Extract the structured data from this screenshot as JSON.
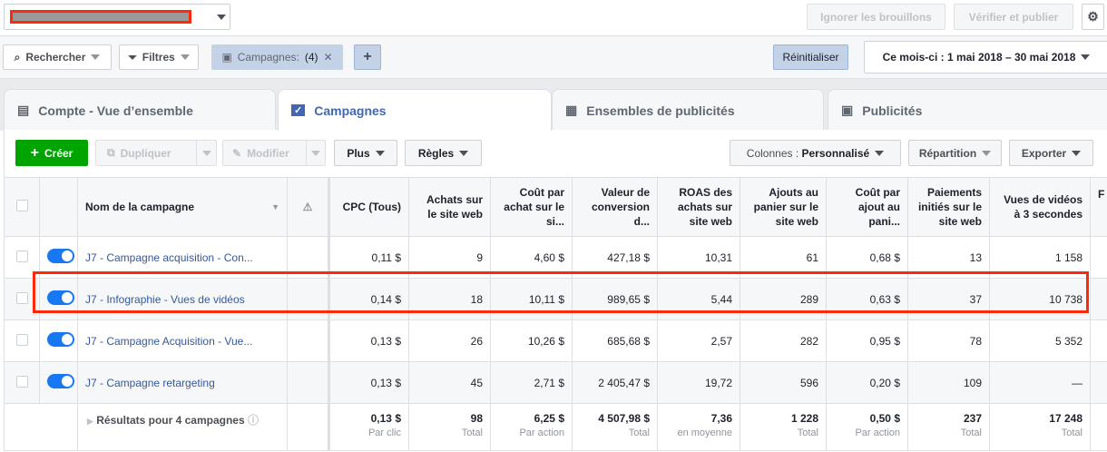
{
  "topbar": {
    "account_redacted": true,
    "discard_label": "Ignorer les brouillons",
    "review_label": "Vérifier et publier",
    "settings_icon": "gear-icon"
  },
  "filterbar": {
    "search_label": "Rechercher",
    "filters_label": "Filtres",
    "chip_label": "Campagnes:",
    "chip_count": "(4)",
    "reset_label": "Réinitialiser",
    "date_label": "Ce mois-ci : 1 mai 2018 – 30 mai 2018"
  },
  "tabs": [
    {
      "label": "Compte - Vue d’ensemble",
      "icon": "account-overview-icon"
    },
    {
      "label": "Campagnes",
      "icon": "campaign-folder-check-icon",
      "active": true
    },
    {
      "label": "Ensembles de publicités",
      "icon": "grid-icon"
    },
    {
      "label": "Publicités",
      "icon": "ad-icon"
    }
  ],
  "toolbar": {
    "create": "Créer",
    "duplicate": "Dupliquer",
    "edit": "Modifier",
    "more": "Plus",
    "rules": "Règles",
    "columns_prefix": "Colonnes : ",
    "columns_value": "Personnalisé",
    "breakdown": "Répartition",
    "export": "Exporter"
  },
  "table": {
    "headers": [
      "Nom de la campagne",
      "CPC (Tous)",
      "Achats sur le site web",
      "Coût par achat sur le si...",
      "Valeur de conversion d...",
      "ROAS des achats sur site web",
      "Ajouts au panier sur le site web",
      "Coût par ajout au pani...",
      "Paiements initiés sur le site web",
      "Vues de vidéos à 3 secondes",
      "F"
    ],
    "rows": [
      {
        "name": "J7 - Campagne acquisition - Con...",
        "active": true,
        "values": [
          "0,11 $",
          "9",
          "4,60 $",
          "427,18 $",
          "10,31",
          "61",
          "0,68 $",
          "13",
          "1 158"
        ]
      },
      {
        "name": "J7 - Infographie - Vues de vidéos",
        "active": true,
        "highlighted": true,
        "values": [
          "0,14 $",
          "18",
          "10,11 $",
          "989,65 $",
          "5,44",
          "289",
          "0,63 $",
          "37",
          "10 738"
        ]
      },
      {
        "name": "J7 - Campagne Acquisition - Vue...",
        "active": true,
        "values": [
          "0,13 $",
          "26",
          "10,26 $",
          "685,68 $",
          "2,57",
          "282",
          "0,95 $",
          "78",
          "5 352"
        ]
      },
      {
        "name": "J7 - Campagne retargeting",
        "active": true,
        "values": [
          "0,13 $",
          "45",
          "2,71 $",
          "2 405,47 $",
          "19,72",
          "596",
          "0,20 $",
          "109",
          "—"
        ]
      }
    ],
    "totals": {
      "label": "Résultats pour 4 campagnes",
      "values": [
        "0,13 $",
        "98",
        "6,25 $",
        "4 507,98 $",
        "7,36",
        "1 228",
        "0,50 $",
        "237",
        "17 248"
      ],
      "subs": [
        "Par clic",
        "Total",
        "Par action",
        "Total",
        "en moyenne",
        "Total",
        "Par action",
        "Total",
        "Total"
      ]
    }
  },
  "colors": {
    "accent": "#4267b2",
    "create": "#00a400",
    "toggle": "#1877f2",
    "highlight": "#fa2a0a"
  }
}
